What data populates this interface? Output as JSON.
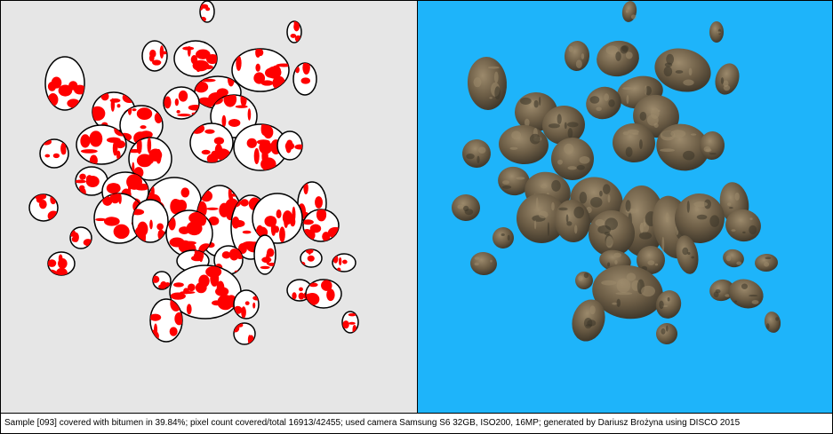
{
  "caption": "Sample [093] covered with bitumen in 39.84%; pixel count covered/total 16913/42455; used camera Samsung S6 32GB, ISO200, 16MP; generated by Dariusz Brożyna using DISCO 2015",
  "colors": {
    "left_background": "#e6e6e6",
    "right_background": "#1eb4fa",
    "particle_fill": "#ffffff",
    "particle_outline": "#000000",
    "bitumen_red": "#ff0000",
    "aggregate_dark": "#3b3428",
    "aggregate_mid": "#6b5c45",
    "aggregate_light": "#9c8a6c"
  }
}
